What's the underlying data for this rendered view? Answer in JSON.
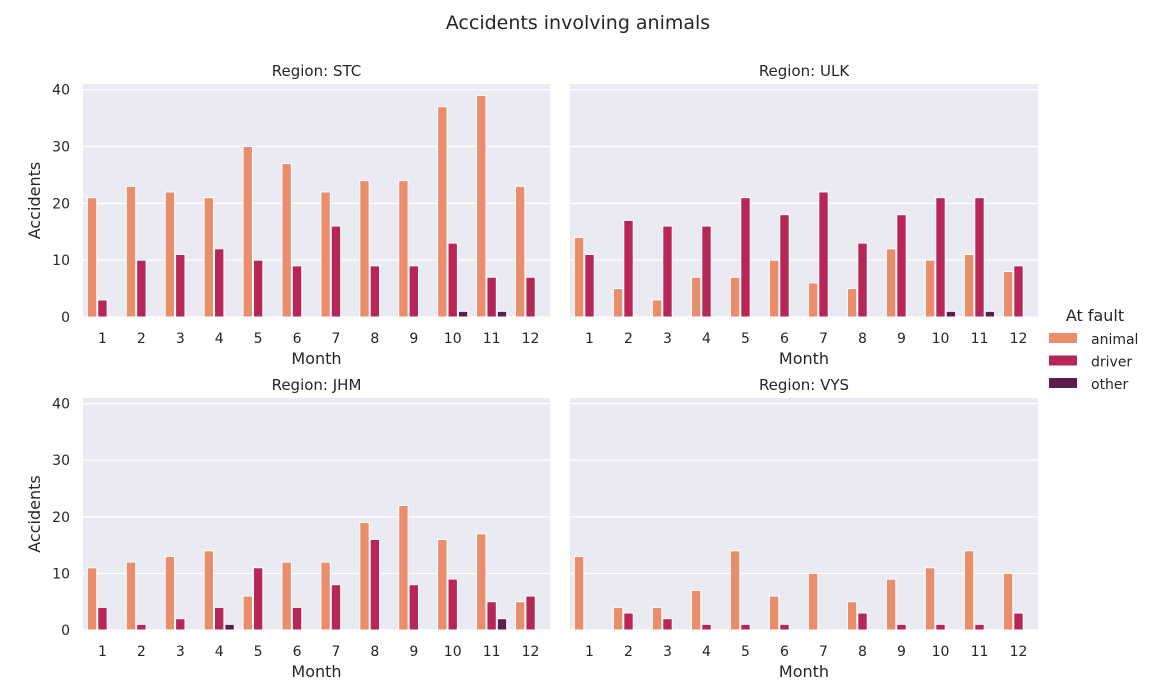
{
  "chart_data": {
    "type": "bar",
    "title": "Accidents involving animals",
    "xlabel": "Month",
    "ylabel": "Accidents",
    "ylim": [
      0,
      41
    ],
    "yticks": [
      0,
      10,
      20,
      30,
      40
    ],
    "grid": true,
    "legend": {
      "title": "At fault",
      "placement": "right",
      "entries": [
        "animal",
        "driver",
        "other"
      ]
    },
    "categories": [
      "1",
      "2",
      "3",
      "4",
      "5",
      "6",
      "7",
      "8",
      "9",
      "10",
      "11",
      "12"
    ],
    "series_colors": {
      "animal": "#e98d6b",
      "driver": "#b62659",
      "other": "#5c1e4f"
    },
    "panels": [
      {
        "title": "Region: STC",
        "series": [
          {
            "name": "animal",
            "values": [
              21,
              23,
              22,
              21,
              30,
              27,
              22,
              24,
              24,
              37,
              39,
              23
            ]
          },
          {
            "name": "driver",
            "values": [
              3,
              10,
              11,
              12,
              10,
              9,
              16,
              9,
              9,
              13,
              7,
              7
            ]
          },
          {
            "name": "other",
            "values": [
              0,
              0,
              0,
              0,
              0,
              0,
              0,
              0,
              0,
              1,
              1,
              0
            ]
          }
        ]
      },
      {
        "title": "Region: ULK",
        "series": [
          {
            "name": "animal",
            "values": [
              14,
              5,
              3,
              7,
              7,
              10,
              6,
              5,
              12,
              10,
              11,
              8
            ]
          },
          {
            "name": "driver",
            "values": [
              11,
              17,
              16,
              16,
              21,
              18,
              22,
              13,
              18,
              21,
              21,
              9
            ]
          },
          {
            "name": "other",
            "values": [
              0,
              0,
              0,
              0,
              0,
              0,
              0,
              0,
              0,
              1,
              1,
              0
            ]
          }
        ]
      },
      {
        "title": "Region: JHM",
        "series": [
          {
            "name": "animal",
            "values": [
              11,
              12,
              13,
              14,
              6,
              12,
              12,
              19,
              22,
              16,
              17,
              5
            ]
          },
          {
            "name": "driver",
            "values": [
              4,
              1,
              2,
              4,
              11,
              4,
              8,
              16,
              8,
              9,
              5,
              6
            ]
          },
          {
            "name": "other",
            "values": [
              0,
              0,
              0,
              1,
              0,
              0,
              0,
              0,
              0,
              0,
              2,
              0
            ]
          }
        ]
      },
      {
        "title": "Region: VYS",
        "series": [
          {
            "name": "animal",
            "values": [
              13,
              4,
              4,
              7,
              14,
              6,
              10,
              5,
              9,
              11,
              14,
              10
            ]
          },
          {
            "name": "driver",
            "values": [
              0,
              3,
              2,
              1,
              1,
              1,
              0,
              3,
              1,
              1,
              1,
              3
            ]
          },
          {
            "name": "other",
            "values": [
              0,
              0,
              0,
              0,
              0,
              0,
              0,
              0,
              0,
              0,
              0,
              0
            ]
          }
        ]
      }
    ]
  }
}
